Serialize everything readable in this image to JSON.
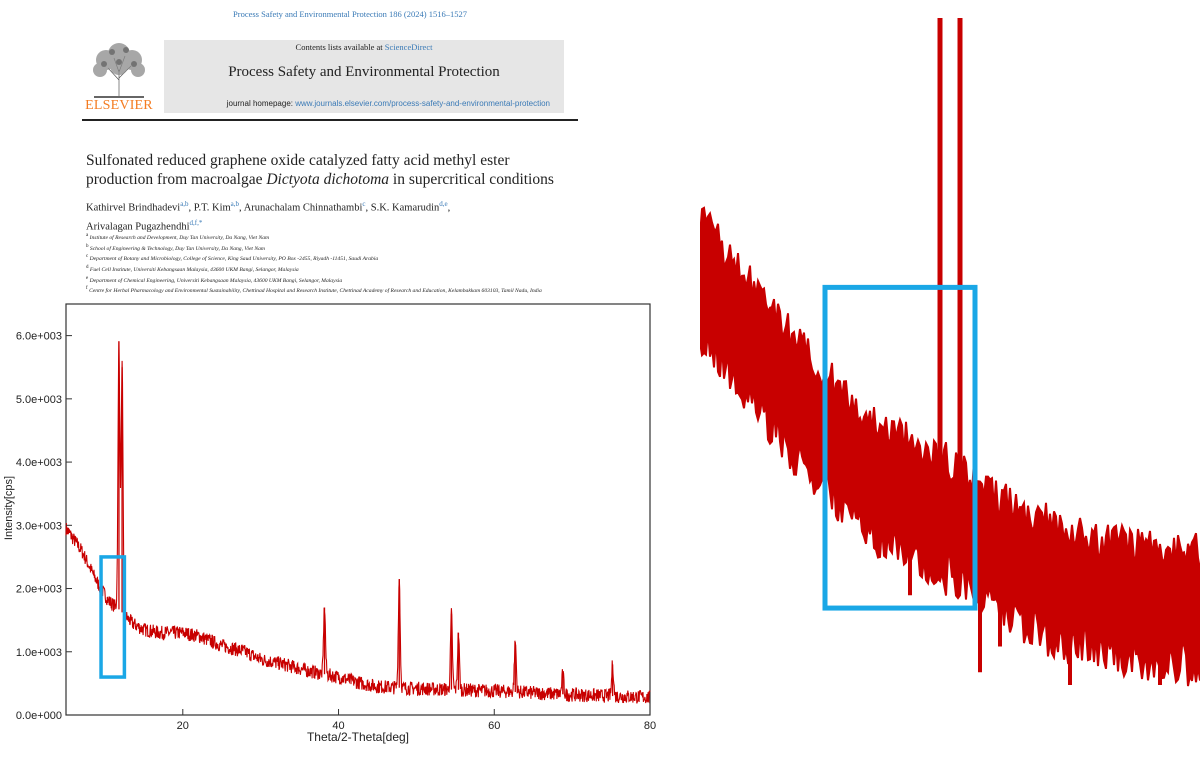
{
  "header": {
    "citation": "Process Safety and Environmental Protection 186 (2024) 1516–1527",
    "contents_prefix": "Contents lists available at ",
    "contents_link": "ScienceDirect",
    "journal_title": "Process Safety and Environmental Protection",
    "homepage_prefix": "journal homepage: ",
    "homepage_url": "www.journals.elsevier.com/process-safety-and-environmental-protection",
    "publisher_logo_text": "ELSEVIER"
  },
  "article": {
    "title_line1": "Sulfonated reduced graphene oxide catalyzed fatty acid methyl ester",
    "title_line2_prefix": "production from macroalgae ",
    "title_line2_italic": "Dictyota dichotoma",
    "title_line2_suffix": " in supercritical conditions",
    "authors": [
      {
        "name": "Kathirvel Brindhadevi",
        "sup": "a,b"
      },
      {
        "name": "P.T. Kim",
        "sup": "a,b"
      },
      {
        "name": "Arunachalam Chinnathambi",
        "sup": "c"
      },
      {
        "name": "S.K. Kamarudin",
        "sup": "d,e"
      },
      {
        "name": "Arivalagan Pugazhendhi",
        "sup": "d,f,*"
      }
    ],
    "affiliations": [
      {
        "sup": "a",
        "text": "Institute of Research and Development, Duy Tan University, Da Nang, Viet Nam"
      },
      {
        "sup": "b",
        "text": "School of Engineering & Technology, Duy Tan University, Da Nang, Viet Nam"
      },
      {
        "sup": "c",
        "text": "Department of Botany and Microbiology, College of Science, King Saud University, PO Box -2455, Riyadh -11451, Saudi Arabia"
      },
      {
        "sup": "d",
        "text": "Fuel Cell Institute, Universiti Kebangsaan Malaysia, 43600 UKM Bangi, Selangor, Malaysia"
      },
      {
        "sup": "e",
        "text": "Department of Chemical Engineering, Universiti Kebangsaan Malaysia, 43600 UKM Bangi, Selangor, Malaysia"
      },
      {
        "sup": "f",
        "text": "Centre for Herbal Pharmacology and Environmental Sustainability, Chettinad Hospital and Research Institute, Chettinad Academy of Research and Education, Kelambakkam 603103, Tamil Nadu, India"
      }
    ]
  },
  "colors": {
    "series": "#c80000",
    "highlight_box": "#1aa7e6",
    "link": "#3a7ab6",
    "publisher_orange": "#f47b20"
  },
  "chart_data": {
    "type": "line",
    "title": "",
    "xlabel": "Theta/2-Theta[deg]",
    "ylabel": "Intensity[cps]",
    "xlim": [
      5,
      80
    ],
    "ylim": [
      0,
      6500
    ],
    "xticks": [
      20,
      40,
      60,
      80
    ],
    "yticks": [
      0,
      1000,
      2000,
      3000,
      4000,
      5000,
      6000
    ],
    "ytick_labels": [
      "0.0e+000",
      "1.0e+003",
      "2.0e+003",
      "3.0e+003",
      "4.0e+003",
      "5.0e+003",
      "6.0e+003"
    ],
    "grid": false,
    "series": [
      {
        "baseline": [
          [
            5,
            2950
          ],
          [
            7,
            2600
          ],
          [
            9,
            2100
          ],
          [
            10.5,
            1800
          ],
          [
            12,
            1650
          ],
          [
            13.5,
            1450
          ],
          [
            15,
            1350
          ],
          [
            17,
            1300
          ],
          [
            20,
            1300
          ],
          [
            22,
            1250
          ],
          [
            25,
            1100
          ],
          [
            28,
            1000
          ],
          [
            30,
            880
          ],
          [
            33,
            800
          ],
          [
            36,
            700
          ],
          [
            40,
            600
          ],
          [
            43,
            500
          ],
          [
            45,
            450
          ],
          [
            48,
            430
          ],
          [
            50,
            420
          ],
          [
            55,
            400
          ],
          [
            60,
            380
          ],
          [
            65,
            350
          ],
          [
            70,
            320
          ],
          [
            75,
            300
          ],
          [
            80,
            280
          ]
        ],
        "peaks": [
          [
            11.8,
            5900
          ],
          [
            12.2,
            5500
          ],
          [
            38.2,
            1700
          ],
          [
            47.8,
            2150
          ],
          [
            54.5,
            1600
          ],
          [
            55.4,
            1300
          ],
          [
            62.7,
            1150
          ],
          [
            68.8,
            650
          ],
          [
            75.2,
            800
          ]
        ]
      }
    ],
    "highlight_region": {
      "x": [
        9.5,
        12.5
      ],
      "y": [
        600,
        2500
      ]
    }
  }
}
